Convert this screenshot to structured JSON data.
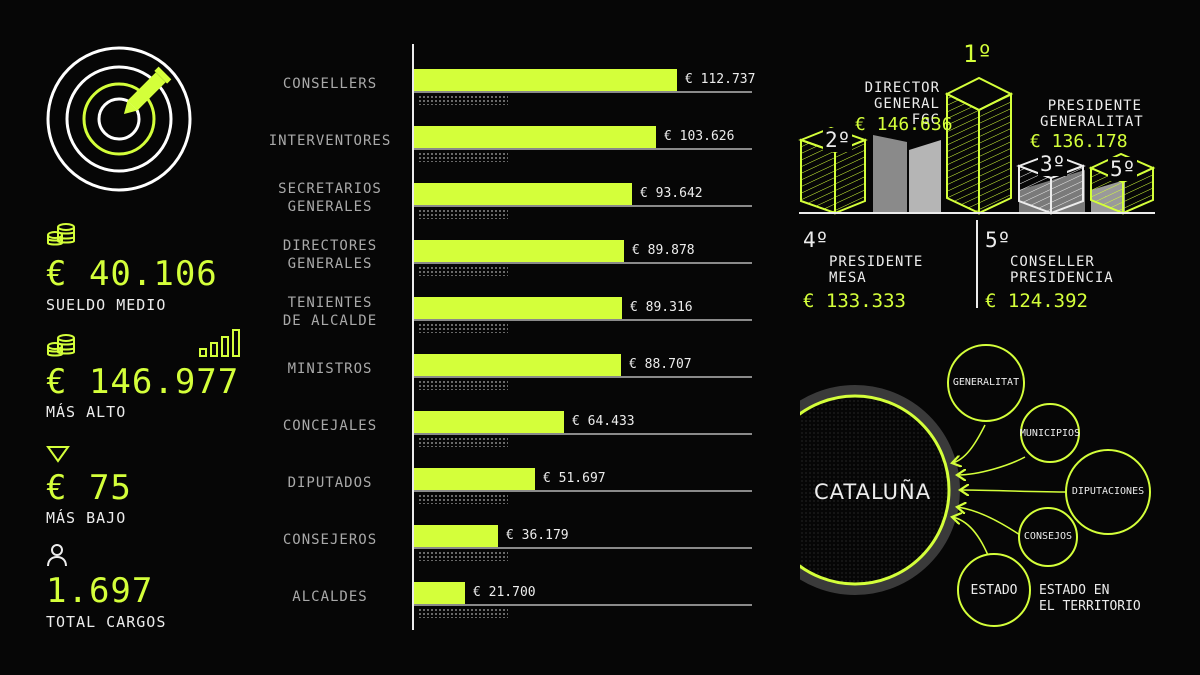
{
  "stats": [
    {
      "icon": "coins-icon",
      "value": "€ 40.106",
      "label": "SUELDO MEDIO"
    },
    {
      "icon": "coins-icon",
      "value": "€ 146.977",
      "label": "MÁS ALTO"
    },
    {
      "icon": "triangle-down-icon",
      "value": "€ 75",
      "label": "MÁS BAJO"
    },
    {
      "icon": "person-icon",
      "value": "1.697",
      "label": "TOTAL CARGOS"
    }
  ],
  "chart_data": {
    "type": "bar",
    "orientation": "horizontal",
    "categories": [
      [
        "CONSELLERS"
      ],
      [
        "INTERVENTORES"
      ],
      [
        "SECRETARIOS",
        "GENERALES"
      ],
      [
        "DIRECTORES",
        "GENERALES"
      ],
      [
        "TENIENTES",
        "DE ALCALDE"
      ],
      [
        "MINISTROS"
      ],
      [
        "CONCEJALES"
      ],
      [
        "DIPUTADOS"
      ],
      [
        "CONSEJEROS"
      ],
      [
        "ALCALDES"
      ]
    ],
    "values": [
      112737,
      103626,
      93642,
      89878,
      89316,
      88707,
      64433,
      51697,
      36179,
      21700
    ],
    "value_labels": [
      "€ 112.737",
      "€ 103.626",
      "€ 93.642",
      "€ 89.878",
      "€ 89.316",
      "€ 88.707",
      "€ 64.433",
      "€ 51.697",
      "€ 36.179",
      "€ 21.700"
    ],
    "bar_color": "#d4ff3a"
  },
  "ranking": {
    "first": {
      "rank": "1º"
    },
    "second": {
      "rank": "2º",
      "title": [
        "DIRECTOR",
        "GENERAL FGC"
      ],
      "value": "€ 146.636"
    },
    "third": {
      "rank": "3º",
      "title": [
        "PRESIDENTE",
        "GENERALITAT"
      ],
      "value": "€ 136.178"
    },
    "fourth": {
      "rank": "4º",
      "title": [
        "PRESIDENTE",
        "MESA"
      ],
      "value": "€ 133.333"
    },
    "fifth": {
      "rank": "5º",
      "title": [
        "CONSELLER",
        "PRESIDENCIA"
      ],
      "value": "€ 124.392"
    },
    "cube_fifth_label": "5º"
  },
  "diagram": {
    "center": "CATALUÑA",
    "nodes": [
      "GENERALITAT",
      "MUNICIPIOS",
      "DIPUTACIONES",
      "CONSEJOS",
      "ESTADO"
    ],
    "estado_caption": [
      "ESTADO EN",
      "EL TERRITORIO"
    ]
  },
  "colors": {
    "accent": "#d4ff3a",
    "background": "#060606",
    "text": "#ececec",
    "muted": "#a9a9a9"
  }
}
